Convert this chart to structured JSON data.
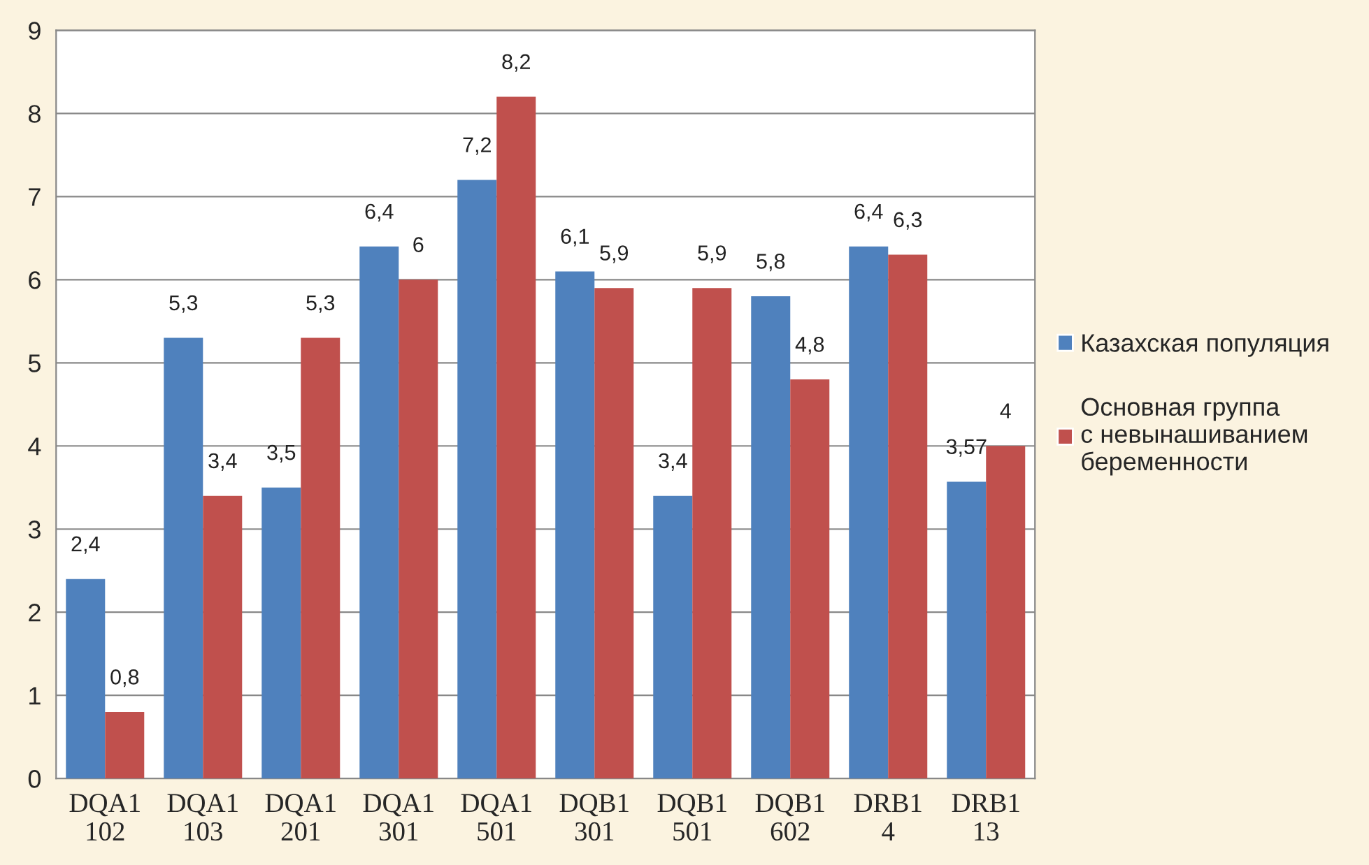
{
  "chart_data": {
    "type": "bar",
    "categories": [
      "DQA1\n102",
      "DQA1\n103",
      "DQA1\n201",
      "DQA1\n301",
      "DQA1\n501",
      "DQB1\n301",
      "DQB1\n501",
      "DQB1\n602",
      "DRB1\n4",
      "DRB1\n13"
    ],
    "series": [
      {
        "name": "Казахская популяция",
        "color": "#4f81bd",
        "values": [
          2.4,
          5.3,
          3.5,
          6.4,
          7.2,
          6.1,
          3.4,
          5.8,
          6.4,
          3.57
        ],
        "value_labels": [
          "2,4",
          "5,3",
          "3,5",
          "6,4",
          "7,2",
          "6,1",
          "3,4",
          "5,8",
          "6,4",
          "3,57"
        ]
      },
      {
        "name": "Основная группа\nс невынашиванием\nбеременности",
        "color": "#c0504d",
        "values": [
          0.8,
          3.4,
          5.3,
          6,
          8.2,
          5.9,
          5.9,
          4.8,
          6.3,
          4
        ],
        "value_labels": [
          "0,8",
          "3,4",
          "5,3",
          "6",
          "8,2",
          "5,9",
          "5,9",
          "4,8",
          "6,3",
          "4"
        ]
      }
    ],
    "ylim": [
      0,
      9
    ],
    "yticks": [
      0,
      1,
      2,
      3,
      4,
      5,
      6,
      7,
      8,
      9
    ],
    "grid": "y",
    "legend": "right"
  }
}
